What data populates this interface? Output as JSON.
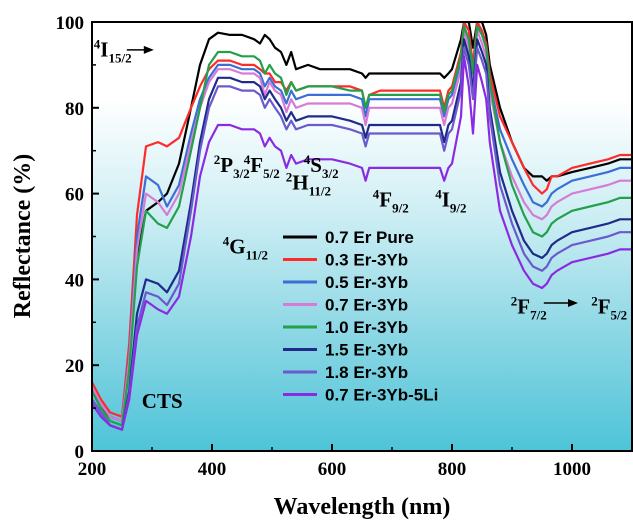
{
  "chart_data": {
    "type": "line",
    "xlabel": "Wavelength (nm)",
    "ylabel": "Reflectance (%)",
    "xlim": [
      200,
      1100
    ],
    "ylim": [
      0,
      100
    ],
    "xticks": [
      200,
      400,
      600,
      800,
      1000
    ],
    "yticks": [
      0,
      20,
      40,
      60,
      80,
      100
    ],
    "background": "gradient white-to-cyan",
    "legend_position": "center",
    "x": [
      200,
      215,
      230,
      250,
      262,
      275,
      290,
      310,
      325,
      345,
      365,
      380,
      395,
      410,
      430,
      450,
      470,
      480,
      488,
      496,
      505,
      515,
      524,
      532,
      540,
      560,
      580,
      600,
      630,
      650,
      656,
      662,
      680,
      700,
      740,
      780,
      787,
      794,
      800,
      815,
      820,
      828,
      835,
      842,
      850,
      857,
      863,
      880,
      900,
      920,
      935,
      950,
      958,
      966,
      975,
      1000,
      1030,
      1060,
      1080,
      1100
    ],
    "series": [
      {
        "name": "0.7 Er Pure",
        "color": "#000000",
        "values": [
          14,
          10,
          8,
          7,
          20,
          45,
          56,
          58,
          60,
          67,
          80,
          90,
          96,
          97.5,
          97,
          97,
          96,
          95,
          97,
          96,
          94,
          93,
          90,
          93,
          89,
          90,
          89,
          89,
          89,
          88,
          87,
          88,
          88,
          88,
          88,
          88,
          87,
          88,
          89,
          96,
          100,
          100,
          94,
          100,
          100,
          97,
          90,
          80,
          72,
          66,
          64,
          64,
          63,
          64,
          64,
          65,
          66,
          67,
          68,
          68
        ]
      },
      {
        "name": "0.3 Er-3Yb",
        "color": "#ff2a2a",
        "values": [
          16,
          12,
          9,
          8,
          25,
          55,
          71,
          72,
          71,
          73,
          80,
          85,
          89,
          91,
          91,
          90,
          90,
          89,
          88,
          88,
          86,
          86,
          84,
          86,
          84,
          85,
          85,
          85,
          85,
          84,
          80,
          83,
          84,
          84,
          84,
          84,
          80,
          84,
          85,
          93,
          100,
          98,
          90,
          100,
          98,
          95,
          88,
          78,
          72,
          66,
          62,
          60,
          61,
          64,
          64,
          66,
          67,
          68,
          69,
          69
        ]
      },
      {
        "name": "0.5 Er-3Yb",
        "color": "#3b6fd6",
        "values": [
          15,
          11,
          8,
          7,
          22,
          50,
          64,
          62,
          57,
          62,
          74,
          82,
          87,
          90,
          90,
          89,
          89,
          88,
          85,
          87,
          85,
          84,
          81,
          84,
          82,
          83,
          83,
          83,
          83,
          82,
          78,
          82,
          82,
          82,
          82,
          82,
          78,
          82,
          83,
          91,
          99,
          96,
          88,
          99,
          97,
          94,
          86,
          75,
          68,
          62,
          58,
          57,
          58,
          60,
          61,
          63,
          64,
          65,
          66,
          66
        ]
      },
      {
        "name": "0.7 Er-3Yb",
        "color": "#d67bd6",
        "values": [
          15,
          11,
          8,
          7,
          21,
          47,
          60,
          58,
          55,
          60,
          72,
          80,
          86,
          89,
          89,
          88,
          88,
          87,
          83,
          86,
          84,
          83,
          79,
          82,
          80,
          81,
          81,
          81,
          81,
          80,
          76,
          80,
          80,
          80,
          80,
          80,
          76,
          80,
          81,
          89,
          98,
          94,
          86,
          98,
          95,
          92,
          84,
          72,
          64,
          58,
          55,
          54,
          55,
          57,
          58,
          60,
          61,
          62,
          63,
          63
        ]
      },
      {
        "name": "1.0 Er-3Yb",
        "color": "#22a04a",
        "values": [
          14,
          10,
          7,
          6,
          19,
          43,
          56,
          53,
          52,
          57,
          70,
          80,
          90,
          93,
          93,
          92,
          92,
          91,
          88,
          90,
          88,
          87,
          83,
          86,
          84,
          85,
          85,
          85,
          84,
          84,
          80,
          83,
          83,
          83,
          83,
          83,
          79,
          83,
          84,
          92,
          99,
          96,
          88,
          99,
          97,
          94,
          86,
          72,
          62,
          55,
          51,
          50,
          51,
          53,
          54,
          56,
          57,
          58,
          59,
          59
        ]
      },
      {
        "name": "1.5 Er-3Yb",
        "color": "#1f2a8a",
        "values": [
          12,
          9,
          6,
          5,
          14,
          32,
          40,
          39,
          37,
          42,
          58,
          72,
          82,
          87,
          87,
          86,
          86,
          85,
          82,
          84,
          82,
          80,
          77,
          79,
          77,
          78,
          78,
          78,
          77,
          76,
          73,
          76,
          76,
          76,
          76,
          76,
          72,
          76,
          77,
          86,
          96,
          92,
          84,
          96,
          93,
          90,
          80,
          65,
          56,
          49,
          46,
          45,
          46,
          48,
          49,
          51,
          52,
          53,
          54,
          54
        ]
      },
      {
        "name": "1.8 Er-3Yb",
        "color": "#6a5acd",
        "values": [
          12,
          9,
          6,
          5,
          13,
          29,
          37,
          36,
          34,
          39,
          56,
          70,
          80,
          85,
          85,
          84,
          84,
          83,
          80,
          82,
          80,
          78,
          75,
          77,
          75,
          76,
          76,
          76,
          75,
          74,
          71,
          74,
          74,
          74,
          74,
          74,
          70,
          74,
          75,
          84,
          94,
          90,
          82,
          94,
          91,
          88,
          78,
          62,
          53,
          46,
          43,
          42,
          43,
          45,
          46,
          48,
          49,
          50,
          51,
          51
        ]
      },
      {
        "name": "0.7 Er-3Yb-5Li",
        "color": "#8a2be2",
        "values": [
          11,
          8,
          6,
          5,
          12,
          27,
          35,
          33,
          32,
          36,
          50,
          64,
          72,
          76,
          76,
          75,
          75,
          74,
          71,
          73,
          71,
          70,
          66,
          69,
          67,
          68,
          68,
          68,
          67,
          66,
          63,
          66,
          66,
          66,
          66,
          66,
          63,
          66,
          67,
          78,
          92,
          85,
          74,
          90,
          86,
          82,
          72,
          56,
          48,
          42,
          39,
          38,
          39,
          41,
          42,
          44,
          45,
          46,
          47,
          47
        ]
      }
    ],
    "annotations": [
      {
        "main": "I",
        "sup": "4",
        "sub": "15/2",
        "x": 203,
        "y": 92,
        "arrow": true
      },
      {
        "main": "P",
        "sup": "2",
        "sub": "3/2",
        "x": 403,
        "y": 65
      },
      {
        "main": "F",
        "sup": "4",
        "sub": "5/2",
        "x": 453,
        "y": 65
      },
      {
        "main": "H",
        "sup": "2",
        "sub": "11/2",
        "x": 523,
        "y": 61
      },
      {
        "main": "S",
        "sup": "4",
        "sub": "3/2",
        "x": 553,
        "y": 65
      },
      {
        "main": "F",
        "sup": "4",
        "sub": "9/2",
        "x": 668,
        "y": 57
      },
      {
        "main": "I",
        "sup": "4",
        "sub": "9/2",
        "x": 772,
        "y": 57
      },
      {
        "main": "G",
        "sup": "4",
        "sub": "11/2",
        "x": 418,
        "y": 46
      },
      {
        "main": "CTS",
        "sup": "",
        "sub": "",
        "x": 283,
        "y": 10
      },
      {
        "main": "F",
        "sup": "2",
        "sub": "7/2",
        "x": 898,
        "y": 32,
        "arrow": true
      },
      {
        "main": "F",
        "sup": "2",
        "sub": "5/2",
        "x": 1032,
        "y": 32
      }
    ]
  }
}
